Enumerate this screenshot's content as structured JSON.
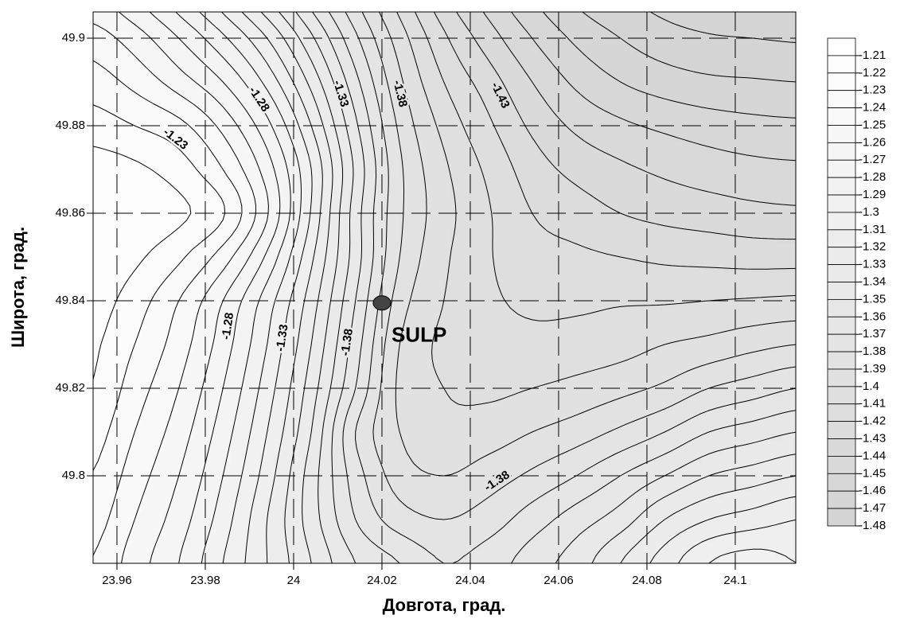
{
  "chart_data": {
    "type": "contour",
    "x_label": "Довгота, град.",
    "y_label": "Широта, град.",
    "xlim": [
      23.9546,
      24.1137
    ],
    "ylim": [
      49.78,
      49.906
    ],
    "xticks": [
      23.96,
      23.98,
      24,
      24.02,
      24.04,
      24.06,
      24.08,
      24.1
    ],
    "yticks": [
      49.8,
      49.82,
      49.84,
      49.86,
      49.88,
      49.9
    ],
    "grid": true,
    "color_range": [
      "#ffffff",
      "#d4d4d4"
    ],
    "x": [
      23.954,
      23.964,
      23.974,
      23.984,
      23.994,
      24.004,
      24.014,
      24.024,
      24.034,
      24.044,
      24.054,
      24.064,
      24.074,
      24.084,
      24.094,
      24.104,
      24.114
    ],
    "y": [
      49.78,
      49.79,
      49.8,
      49.81,
      49.82,
      49.83,
      49.84,
      49.85,
      49.86,
      49.87,
      49.88,
      49.89,
      49.9,
      49.91
    ],
    "z": [
      [
        -1.24,
        -1.255,
        -1.27,
        -1.29,
        -1.31,
        -1.33,
        -1.35,
        -1.36,
        -1.37,
        -1.365,
        -1.355,
        -1.345,
        -1.33,
        -1.315,
        -1.3,
        -1.295,
        -1.3
      ],
      [
        -1.235,
        -1.25,
        -1.265,
        -1.285,
        -1.31,
        -1.335,
        -1.36,
        -1.375,
        -1.38,
        -1.375,
        -1.365,
        -1.355,
        -1.345,
        -1.33,
        -1.32,
        -1.315,
        -1.31
      ],
      [
        -1.23,
        -1.245,
        -1.26,
        -1.28,
        -1.305,
        -1.335,
        -1.365,
        -1.385,
        -1.39,
        -1.385,
        -1.378,
        -1.37,
        -1.36,
        -1.35,
        -1.34,
        -1.335,
        -1.33
      ],
      [
        -1.225,
        -1.24,
        -1.255,
        -1.275,
        -1.3,
        -1.33,
        -1.37,
        -1.39,
        -1.397,
        -1.395,
        -1.39,
        -1.385,
        -1.378,
        -1.37,
        -1.36,
        -1.355,
        -1.35
      ],
      [
        -1.22,
        -1.235,
        -1.25,
        -1.27,
        -1.295,
        -1.325,
        -1.36,
        -1.392,
        -1.4,
        -1.402,
        -1.4,
        -1.397,
        -1.393,
        -1.388,
        -1.38,
        -1.375,
        -1.37
      ],
      [
        -1.218,
        -1.23,
        -1.245,
        -1.265,
        -1.29,
        -1.32,
        -1.355,
        -1.39,
        -1.402,
        -1.406,
        -1.407,
        -1.406,
        -1.404,
        -1.4,
        -1.397,
        -1.393,
        -1.39
      ],
      [
        -1.215,
        -1.225,
        -1.24,
        -1.26,
        -1.285,
        -1.315,
        -1.35,
        -1.385,
        -1.4,
        -1.408,
        -1.412,
        -1.412,
        -1.411,
        -1.411,
        -1.41,
        -1.409,
        -1.408
      ],
      [
        -1.212,
        -1.218,
        -1.228,
        -1.245,
        -1.272,
        -1.308,
        -1.345,
        -1.38,
        -1.398,
        -1.409,
        -1.416,
        -1.418,
        -1.42,
        -1.422,
        -1.423,
        -1.424,
        -1.424
      ],
      [
        -1.212,
        -1.214,
        -1.218,
        -1.229,
        -1.259,
        -1.301,
        -1.345,
        -1.378,
        -1.396,
        -1.409,
        -1.42,
        -1.425,
        -1.43,
        -1.433,
        -1.435,
        -1.437,
        -1.438
      ],
      [
        -1.215,
        -1.218,
        -1.225,
        -1.24,
        -1.265,
        -1.3,
        -1.342,
        -1.378,
        -1.398,
        -1.412,
        -1.425,
        -1.433,
        -1.438,
        -1.442,
        -1.445,
        -1.447,
        -1.448
      ],
      [
        -1.225,
        -1.23,
        -1.237,
        -1.253,
        -1.277,
        -1.31,
        -1.348,
        -1.382,
        -1.403,
        -1.418,
        -1.432,
        -1.442,
        -1.448,
        -1.452,
        -1.455,
        -1.457,
        -1.458
      ],
      [
        -1.235,
        -1.243,
        -1.255,
        -1.27,
        -1.293,
        -1.323,
        -1.357,
        -1.388,
        -1.41,
        -1.425,
        -1.44,
        -1.452,
        -1.46,
        -1.465,
        -1.468,
        -1.469,
        -1.47
      ],
      [
        -1.245,
        -1.255,
        -1.27,
        -1.288,
        -1.31,
        -1.338,
        -1.368,
        -1.395,
        -1.418,
        -1.435,
        -1.45,
        -1.462,
        -1.47,
        -1.476,
        -1.479,
        -1.48,
        -1.481
      ],
      [
        -1.258,
        -1.27,
        -1.287,
        -1.307,
        -1.33,
        -1.355,
        -1.38,
        -1.405,
        -1.428,
        -1.445,
        -1.46,
        -1.472,
        -1.479,
        -1.484,
        -1.487,
        -1.488,
        -1.489
      ]
    ],
    "levels": [
      -1.21,
      -1.22,
      -1.23,
      -1.24,
      -1.25,
      -1.26,
      -1.27,
      -1.28,
      -1.29,
      -1.3,
      -1.31,
      -1.32,
      -1.33,
      -1.34,
      -1.35,
      -1.36,
      -1.37,
      -1.38,
      -1.39,
      -1.4,
      -1.41,
      -1.42,
      -1.43,
      -1.44,
      -1.45,
      -1.46,
      -1.47,
      -1.48
    ],
    "contour_labels": [
      {
        "x": 23.9732,
        "y": 49.8769,
        "value": -1.23
      },
      {
        "x": 23.9921,
        "y": 49.886,
        "value": -1.28
      },
      {
        "x": 24.0106,
        "y": 49.8873,
        "value": -1.33
      },
      {
        "x": 24.024,
        "y": 49.8873,
        "value": -1.38
      },
      {
        "x": 24.0467,
        "y": 49.8869,
        "value": -1.43
      },
      {
        "x": 23.9852,
        "y": 49.8342,
        "value": -1.28
      },
      {
        "x": 23.9975,
        "y": 49.8315,
        "value": -1.33
      },
      {
        "x": 24.0122,
        "y": 49.8305,
        "value": -1.38
      },
      {
        "x": 24.0461,
        "y": 49.7987,
        "value": -1.38
      }
    ],
    "annotations": [
      {
        "label": "SULP",
        "x": 24.02,
        "y": 49.8395
      }
    ]
  }
}
